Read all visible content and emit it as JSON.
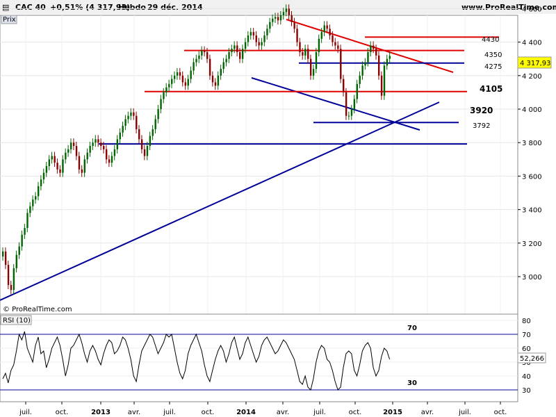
{
  "header": {
    "symbol": "CAC 40",
    "change": "+0,51% (4 317,93)",
    "period": "Hebdo",
    "date": "29 déc. 2014",
    "site": "www.ProRealTime.com",
    "price_tab": "Prix",
    "watermark": "© ProRealTime.com"
  },
  "chart_data": [
    {
      "type": "candlestick",
      "title": "",
      "series": [
        {
          "values": [
            3150,
            3070,
            2950,
            2920,
            3050,
            3130,
            3180,
            3250,
            3290,
            3380,
            3420,
            3460,
            3480,
            3540,
            3580,
            3620,
            3660,
            3700,
            3720,
            3680,
            3640,
            3620,
            3700,
            3740,
            3760,
            3800,
            3780,
            3720,
            3640,
            3620,
            3700,
            3740,
            3780,
            3800,
            3820,
            3800,
            3780,
            3760,
            3700,
            3680,
            3720,
            3760,
            3820,
            3860,
            3900,
            3940,
            3960,
            3980,
            3960,
            3880,
            3820,
            3760,
            3720,
            3780,
            3840,
            3880,
            3940,
            4000,
            4060,
            4100,
            4130,
            4150,
            4180,
            4200,
            4220,
            4200,
            4160,
            4140,
            4180,
            4230,
            4280,
            4300,
            4320,
            4350,
            4340,
            4300,
            4200,
            4160,
            4140,
            4200,
            4240,
            4280,
            4300,
            4340,
            4360,
            4380,
            4340,
            4300,
            4360,
            4400,
            4440,
            4460,
            4440,
            4400,
            4380,
            4400,
            4440,
            4480,
            4520,
            4540,
            4550,
            4530,
            4560,
            4580,
            4600,
            4560,
            4520,
            4480,
            4400,
            4340,
            4320,
            4360,
            4300,
            4200,
            4240,
            4340,
            4420,
            4460,
            4500,
            4480,
            4440,
            4400,
            4380,
            4360,
            4180,
            4100,
            3960,
            3960,
            4000,
            4060,
            4150,
            4200,
            4260,
            4280,
            4340,
            4380,
            4360,
            4320,
            4200,
            4080,
            4260,
            4300,
            4318
          ]
        }
      ],
      "yticks": [
        "3 000",
        "3 200",
        "3 400",
        "3 600",
        "3 800",
        "4 000",
        "4 200",
        "4 400",
        "4 600"
      ],
      "xticks": [
        "juil.",
        "oct.",
        "2013",
        "avr.",
        "juil.",
        "oct.",
        "2014",
        "avr.",
        "juil.",
        "oct.",
        "2015",
        "avr.",
        "juil.",
        "oct."
      ],
      "last_price_label": "4 317,93",
      "horizontal_levels": [
        {
          "label": "4430",
          "value": 4430,
          "color": "#e00000"
        },
        {
          "label": "4350",
          "value": 4350,
          "color": "#e00000"
        },
        {
          "label": "4275",
          "value": 4275,
          "color": "#000099"
        },
        {
          "label": "4105",
          "value": 4105,
          "color": "#e00000"
        },
        {
          "label": "3920",
          "value": 3920,
          "color": "#000099"
        },
        {
          "label": "3792",
          "value": 3792,
          "color": "#000099"
        }
      ],
      "colors": {
        "up": "#006400",
        "down": "#8b0000",
        "resistance": "#e00000",
        "support": "#000099"
      }
    },
    {
      "type": "line",
      "title": "RSI (10)",
      "ylim": [
        25,
        80
      ],
      "yticks": [
        "30",
        "40",
        "50",
        "60",
        "70",
        "80"
      ],
      "reference_levels": [
        {
          "label": "70",
          "value": 70
        },
        {
          "label": "30",
          "value": 30
        }
      ],
      "last_value_label": "52,266",
      "series": [
        {
          "values": [
            38,
            42,
            35,
            44,
            48,
            58,
            70,
            66,
            72,
            60,
            55,
            50,
            62,
            68,
            56,
            58,
            46,
            52,
            60,
            64,
            68,
            62,
            52,
            40,
            48,
            60,
            62,
            66,
            70,
            64,
            56,
            50,
            58,
            62,
            58,
            52,
            48,
            56,
            62,
            66,
            64,
            56,
            58,
            62,
            68,
            66,
            60,
            52,
            40,
            36,
            48,
            58,
            62,
            66,
            70,
            68,
            62,
            56,
            60,
            64,
            70,
            68,
            70,
            60,
            50,
            42,
            38,
            44,
            56,
            62,
            66,
            70,
            64,
            58,
            48,
            40,
            36,
            44,
            52,
            58,
            62,
            58,
            50,
            56,
            64,
            68,
            60,
            52,
            56,
            64,
            68,
            62,
            56,
            50,
            54,
            62,
            66,
            68,
            64,
            60,
            56,
            58,
            62,
            66,
            64,
            60,
            56,
            52,
            44,
            36,
            34,
            40,
            32,
            30,
            38,
            50,
            58,
            62,
            60,
            52,
            50,
            44,
            36,
            30,
            32,
            46,
            56,
            58,
            56,
            44,
            40,
            48,
            58,
            62,
            64,
            60,
            46,
            40,
            44,
            54,
            60,
            58,
            52
          ]
        }
      ]
    }
  ]
}
